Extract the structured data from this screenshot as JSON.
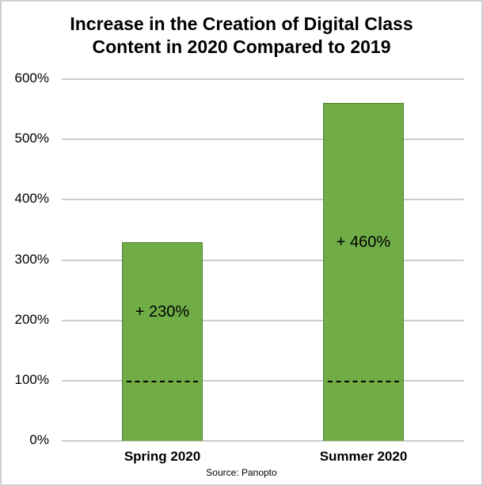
{
  "chart_data": {
    "type": "bar",
    "title": "Increase in the Creation of Digital Class Content in 2020 Compared to 2019",
    "categories": [
      "Spring 2020",
      "Summer 2020"
    ],
    "values": [
      330,
      560
    ],
    "data_labels": [
      "+ 230%",
      "+ 460%"
    ],
    "baseline_reference": 100,
    "baseline_style": "dashed line at 100% within bars",
    "xlabel": "",
    "ylabel": "",
    "ylim": [
      0,
      600
    ],
    "yticks": [
      "0%",
      "100%",
      "200%",
      "300%",
      "400%",
      "500%",
      "600%"
    ],
    "grid": true,
    "legend": null,
    "bar_color": "#70ad47",
    "annotation": "Source: Panopto"
  },
  "title_line1": "Increase in the Creation of Digital Class",
  "title_line2": "Content in 2020 Compared to 2019",
  "source": "Source: Panopto"
}
